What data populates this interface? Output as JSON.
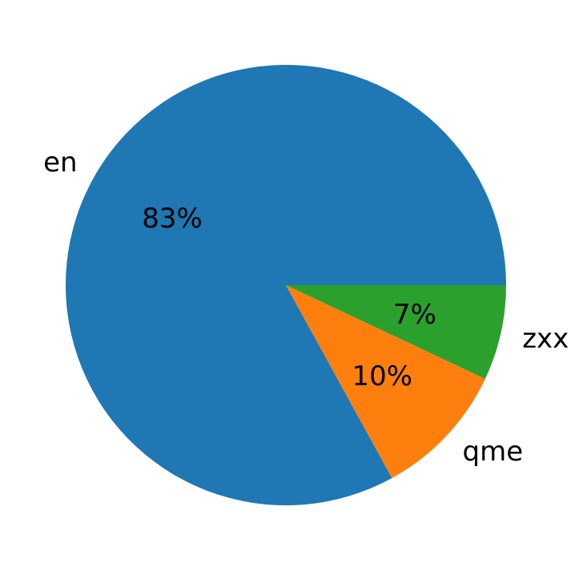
{
  "chart_data": {
    "type": "pie",
    "title": "",
    "slices": [
      {
        "label": "en",
        "value": 83,
        "pct_text": "83%",
        "color": "#1f77b4"
      },
      {
        "label": "qme",
        "value": 10,
        "pct_text": "10%",
        "color": "#ff7f0e"
      },
      {
        "label": "zxx",
        "value": 7,
        "pct_text": "7%",
        "color": "#2ca02c"
      }
    ],
    "start_angle_deg": 0,
    "counterclockwise": true,
    "pct_distance": 0.6,
    "label_distance": 1.1,
    "text_color": "#000000",
    "background_color": "#ffffff",
    "legend": "none"
  }
}
